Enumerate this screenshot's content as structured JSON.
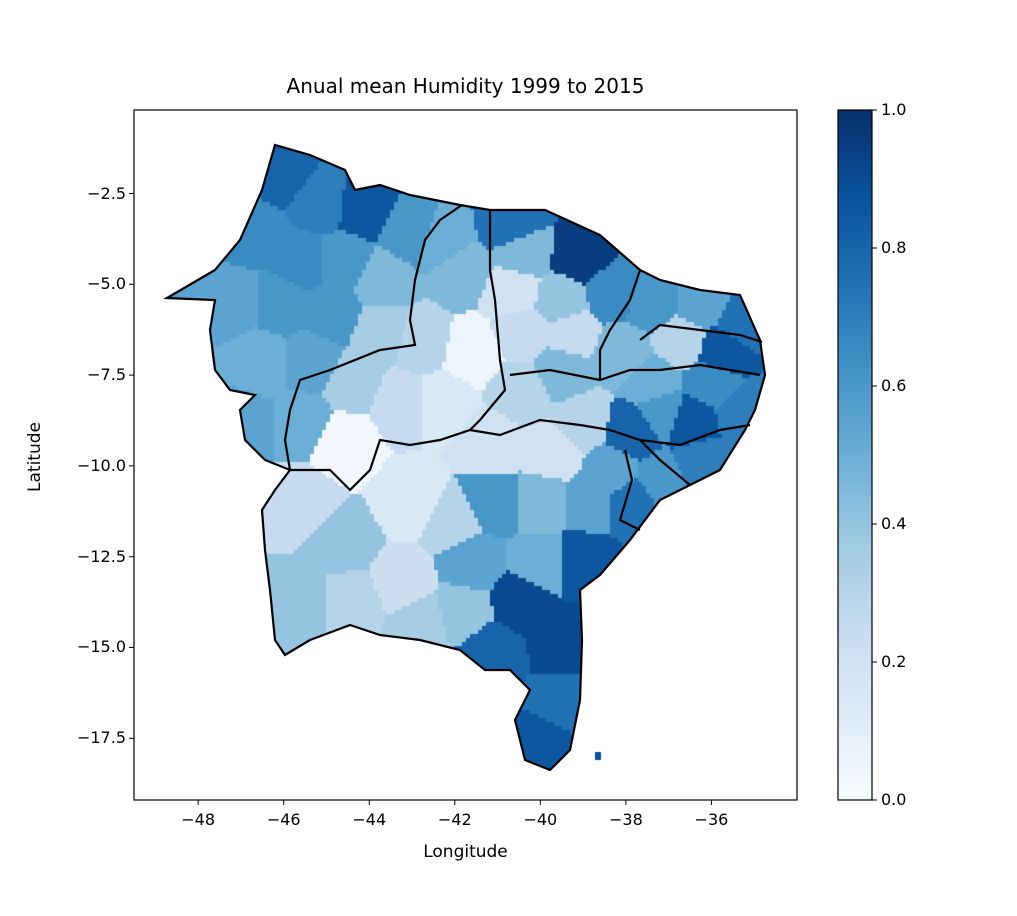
{
  "chart_data": {
    "type": "heatmap",
    "title": "Anual mean Humidity 1999 to 2015",
    "xlabel": "Longitude",
    "ylabel": "Latitude",
    "xticks": [
      "−48",
      "−46",
      "−44",
      "−42",
      "−40",
      "−38",
      "−36"
    ],
    "yticks": [
      "−2.5",
      "−5.0",
      "−7.5",
      "−10.0",
      "−12.5",
      "−15.0",
      "−17.5"
    ],
    "xlim": [
      -49.5,
      -34.0
    ],
    "ylim": [
      -19.2,
      -0.2
    ],
    "colorbar": {
      "colormap": "Blues",
      "range": [
        0.0,
        1.0
      ],
      "ticks": [
        "0.0",
        "0.2",
        "0.4",
        "0.6",
        "0.8",
        "1.0"
      ],
      "colors": [
        "#f7fbff",
        "#deebf7",
        "#c6dbef",
        "#9ecae1",
        "#6baed6",
        "#4292c6",
        "#2171b5",
        "#08519c",
        "#08306b"
      ]
    },
    "grid": false
  }
}
